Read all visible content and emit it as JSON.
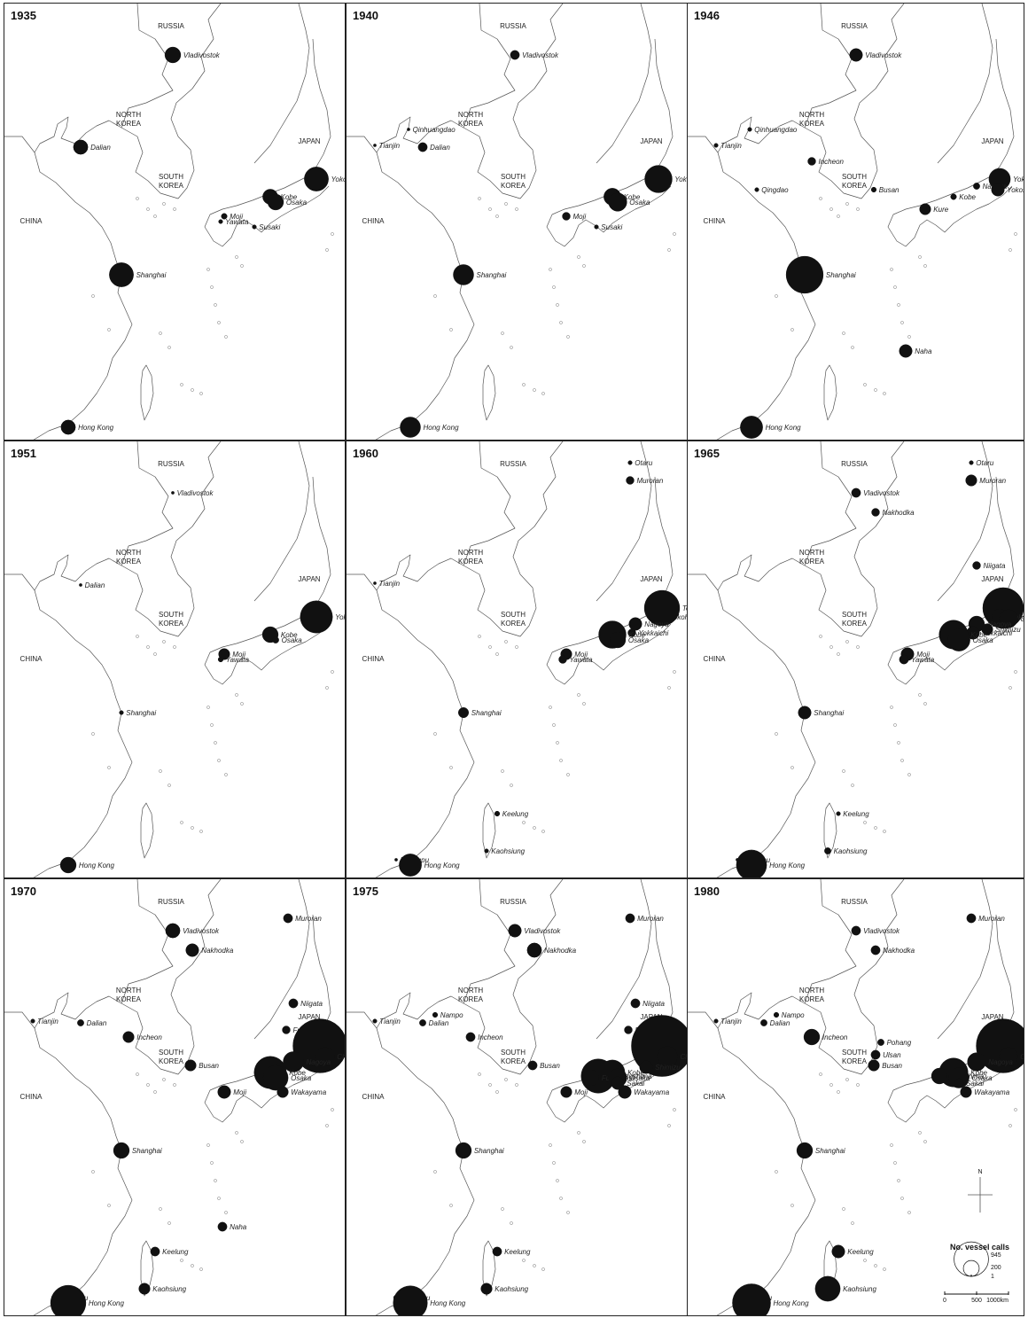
{
  "countries": {
    "russia": "RUSSIA",
    "north_korea_1": "NORTH",
    "north_korea_2": "KOREA",
    "south_korea_1": "SOUTH",
    "south_korea_2": "KOREA",
    "china": "CHINA",
    "japan": "JAPAN"
  },
  "legend": {
    "title": "No. vessel calls",
    "sizes": [
      945,
      200,
      1
    ],
    "scale_labels": [
      "0",
      "500",
      "1000km"
    ],
    "north": "N"
  },
  "ports_catalog": {
    "Vladivostok": [
      190,
      58
    ],
    "Nakhodka": [
      212,
      80
    ],
    "Dalian": [
      86,
      162
    ],
    "Tianjin": [
      32,
      160
    ],
    "Qinhuangdao": [
      70,
      142
    ],
    "Nampo": [
      100,
      153
    ],
    "Incheon": [
      140,
      178
    ],
    "Busan": [
      210,
      210
    ],
    "Ulsan": [
      212,
      198
    ],
    "Pohang": [
      218,
      184
    ],
    "Qingdao": [
      78,
      210
    ],
    "Shanghai": [
      132,
      306
    ],
    "Hong Kong": [
      72,
      478
    ],
    "Huangpu": [
      56,
      472
    ],
    "Keelung": [
      170,
      420
    ],
    "Kaohsiung": [
      158,
      462
    ],
    "Naha": [
      246,
      392
    ],
    "Moji": [
      248,
      240
    ],
    "Yawata": [
      244,
      246
    ],
    "Susaki": [
      282,
      252
    ],
    "Kure": [
      268,
      232
    ],
    "Fukuyama": [
      276,
      224
    ],
    "Mizushima": [
      284,
      222
    ],
    "Kobe": [
      300,
      218
    ],
    "Osaka": [
      306,
      224
    ],
    "Sakai": [
      306,
      230
    ],
    "Wakayama": [
      314,
      240
    ],
    "Yokkaichi": [
      322,
      216
    ],
    "Nagoya": [
      326,
      206
    ],
    "Shimizu": [
      338,
      212
    ],
    "Yokohama": [
      352,
      198
    ],
    "Tokyo": [
      356,
      188
    ],
    "Chiba": [
      362,
      200
    ],
    "Yokosuka": [
      350,
      210
    ],
    "Fushiki": [
      318,
      170
    ],
    "Niigata": [
      326,
      140
    ],
    "Otaru": [
      320,
      24
    ],
    "Muroran": [
      320,
      44
    ]
  },
  "panels": [
    {
      "year": "1935",
      "ports": [
        {
          "name": "Vladivostok",
          "calls": 60
        },
        {
          "name": "Dalian",
          "calls": 50
        },
        {
          "name": "Yokohama",
          "calls": 140
        },
        {
          "name": "Kobe",
          "calls": 55
        },
        {
          "name": "Osaka",
          "calls": 60
        },
        {
          "name": "Moji",
          "calls": 8
        },
        {
          "name": "Yawata",
          "calls": 4
        },
        {
          "name": "Susaki",
          "calls": 4
        },
        {
          "name": "Shanghai",
          "calls": 140
        },
        {
          "name": "Hong Kong",
          "calls": 50
        }
      ]
    },
    {
      "year": "1940",
      "ports": [
        {
          "name": "Vladivostok",
          "calls": 20
        },
        {
          "name": "Qinhuangdao",
          "calls": 2
        },
        {
          "name": "Tianjin",
          "calls": 2
        },
        {
          "name": "Dalian",
          "calls": 20
        },
        {
          "name": "Yokohama",
          "calls": 180
        },
        {
          "name": "Kobe",
          "calls": 70
        },
        {
          "name": "Osaka",
          "calls": 80
        },
        {
          "name": "Moji",
          "calls": 15
        },
        {
          "name": "Susaki",
          "calls": 4
        },
        {
          "name": "Shanghai",
          "calls": 100
        },
        {
          "name": "Hong Kong",
          "calls": 100
        }
      ]
    },
    {
      "year": "1946",
      "ports": [
        {
          "name": "Vladivostok",
          "calls": 40
        },
        {
          "name": "Qinhuangdao",
          "calls": 4
        },
        {
          "name": "Tianjin",
          "calls": 4
        },
        {
          "name": "Incheon",
          "calls": 15
        },
        {
          "name": "Busan",
          "calls": 6
        },
        {
          "name": "Qingdao",
          "calls": 4
        },
        {
          "name": "Kure",
          "calls": 30
        },
        {
          "name": "Kobe",
          "calls": 8
        },
        {
          "name": "Yokohama",
          "calls": 110
        },
        {
          "name": "Nagoya",
          "calls": 10
        },
        {
          "name": "Yokosuka",
          "calls": 40
        },
        {
          "name": "Shanghai",
          "calls": 330
        },
        {
          "name": "Naha",
          "calls": 40
        },
        {
          "name": "Hong Kong",
          "calls": 120
        }
      ]
    },
    {
      "year": "1951",
      "ports": [
        {
          "name": "Vladivostok",
          "calls": 2
        },
        {
          "name": "Dalian",
          "calls": 2
        },
        {
          "name": "Yokohama",
          "calls": 250
        },
        {
          "name": "Kobe",
          "calls": 60
        },
        {
          "name": "Osaka",
          "calls": 10
        },
        {
          "name": "Moji",
          "calls": 30
        },
        {
          "name": "Yawata",
          "calls": 6
        },
        {
          "name": "Shanghai",
          "calls": 4
        },
        {
          "name": "Hong Kong",
          "calls": 60
        }
      ]
    },
    {
      "year": "1960",
      "ports": [
        {
          "name": "Otaru",
          "calls": 4
        },
        {
          "name": "Muroran",
          "calls": 15
        },
        {
          "name": "Tianjin",
          "calls": 2
        },
        {
          "name": "Yokohama",
          "calls": 60
        },
        {
          "name": "Tokyo",
          "calls": 300
        },
        {
          "name": "Nagoya",
          "calls": 40
        },
        {
          "name": "Yokkaichi",
          "calls": 15
        },
        {
          "name": "Kobe",
          "calls": 180
        },
        {
          "name": "Osaka",
          "calls": 60
        },
        {
          "name": "Moji",
          "calls": 30
        },
        {
          "name": "Yawata",
          "calls": 15
        },
        {
          "name": "Shanghai",
          "calls": 25
        },
        {
          "name": "Keelung",
          "calls": 6
        },
        {
          "name": "Kaohsiung",
          "calls": 4
        },
        {
          "name": "Huangpu",
          "calls": 2
        },
        {
          "name": "Hong Kong",
          "calls": 120
        }
      ]
    },
    {
      "year": "1965",
      "ports": [
        {
          "name": "Otaru",
          "calls": 4
        },
        {
          "name": "Muroran",
          "calls": 30
        },
        {
          "name": "Vladivostok",
          "calls": 20
        },
        {
          "name": "Nakhodka",
          "calls": 15
        },
        {
          "name": "Niigata",
          "calls": 15
        },
        {
          "name": "Tokyo",
          "calls": 400
        },
        {
          "name": "Yokohama",
          "calls": 60
        },
        {
          "name": "Chiba",
          "calls": 80
        },
        {
          "name": "Nagoya",
          "calls": 60
        },
        {
          "name": "Yokkaichi",
          "calls": 40
        },
        {
          "name": "Shimizu",
          "calls": 30
        },
        {
          "name": "Kobe",
          "calls": 200
        },
        {
          "name": "Osaka",
          "calls": 120
        },
        {
          "name": "Moji",
          "calls": 40
        },
        {
          "name": "Yawata",
          "calls": 20
        },
        {
          "name": "Shanghai",
          "calls": 40
        },
        {
          "name": "Keelung",
          "calls": 4
        },
        {
          "name": "Kaohsiung",
          "calls": 10
        },
        {
          "name": "Huangpu",
          "calls": 2
        },
        {
          "name": "Hong Kong",
          "calls": 220
        }
      ]
    },
    {
      "year": "1970",
      "ports": [
        {
          "name": "Vladivostok",
          "calls": 50
        },
        {
          "name": "Nakhodka",
          "calls": 40
        },
        {
          "name": "Muroran",
          "calls": 20
        },
        {
          "name": "Tianjin",
          "calls": 4
        },
        {
          "name": "Dalian",
          "calls": 10
        },
        {
          "name": "Incheon",
          "calls": 30
        },
        {
          "name": "Busan",
          "calls": 30
        },
        {
          "name": "Niigata",
          "calls": 20
        },
        {
          "name": "Fushiki",
          "calls": 15
        },
        {
          "name": "Yokohama",
          "calls": 120
        },
        {
          "name": "Tokyo",
          "calls": 700
        },
        {
          "name": "Chiba",
          "calls": 80
        },
        {
          "name": "Nagoya",
          "calls": 100
        },
        {
          "name": "Kobe",
          "calls": 250
        },
        {
          "name": "Osaka",
          "calls": 150
        },
        {
          "name": "Wakayama",
          "calls": 30
        },
        {
          "name": "Moji",
          "calls": 40
        },
        {
          "name": "Shanghai",
          "calls": 60
        },
        {
          "name": "Naha",
          "calls": 20
        },
        {
          "name": "Keelung",
          "calls": 20
        },
        {
          "name": "Kaohsiung",
          "calls": 30
        },
        {
          "name": "Huangpu",
          "calls": 6
        },
        {
          "name": "Hong Kong",
          "calls": 300
        }
      ]
    },
    {
      "year": "1975",
      "ports": [
        {
          "name": "Vladivostok",
          "calls": 40
        },
        {
          "name": "Nakhodka",
          "calls": 50
        },
        {
          "name": "Muroran",
          "calls": 20
        },
        {
          "name": "Tianjin",
          "calls": 4
        },
        {
          "name": "Nampo",
          "calls": 6
        },
        {
          "name": "Dalian",
          "calls": 10
        },
        {
          "name": "Incheon",
          "calls": 20
        },
        {
          "name": "Busan",
          "calls": 20
        },
        {
          "name": "Niigata",
          "calls": 20
        },
        {
          "name": "Fushiki",
          "calls": 15
        },
        {
          "name": "Yokohama",
          "calls": 120
        },
        {
          "name": "Tokyo",
          "calls": 900
        },
        {
          "name": "Chiba",
          "calls": 100
        },
        {
          "name": "Shimizu",
          "calls": 40
        },
        {
          "name": "Kobe",
          "calls": 150
        },
        {
          "name": "Mizushima",
          "calls": 280
        },
        {
          "name": "Fukuyama",
          "calls": 60
        },
        {
          "name": "Osaka",
          "calls": 80
        },
        {
          "name": "Sakai",
          "calls": 40
        },
        {
          "name": "Wakayama",
          "calls": 40
        },
        {
          "name": "Moji",
          "calls": 30
        },
        {
          "name": "Shanghai",
          "calls": 60
        },
        {
          "name": "Keelung",
          "calls": 20
        },
        {
          "name": "Kaohsiung",
          "calls": 30
        },
        {
          "name": "Huangpu",
          "calls": 6
        },
        {
          "name": "Hong Kong",
          "calls": 280
        }
      ]
    },
    {
      "year": "1980",
      "ports": [
        {
          "name": "Vladivostok",
          "calls": 20
        },
        {
          "name": "Nakhodka",
          "calls": 20
        },
        {
          "name": "Muroran",
          "calls": 20
        },
        {
          "name": "Tianjin",
          "calls": 4
        },
        {
          "name": "Nampo",
          "calls": 6
        },
        {
          "name": "Dalian",
          "calls": 10
        },
        {
          "name": "Incheon",
          "calls": 60
        },
        {
          "name": "Pohang",
          "calls": 10
        },
        {
          "name": "Ulsan",
          "calls": 20
        },
        {
          "name": "Busan",
          "calls": 30
        },
        {
          "name": "Yokohama",
          "calls": 60
        },
        {
          "name": "Tokyo",
          "calls": 700
        },
        {
          "name": "Chiba",
          "calls": 80
        },
        {
          "name": "Nagoya",
          "calls": 80
        },
        {
          "name": "Kobe",
          "calls": 200
        },
        {
          "name": "Mizushima",
          "calls": 60
        },
        {
          "name": "Osaka",
          "calls": 100
        },
        {
          "name": "Sakai",
          "calls": 20
        },
        {
          "name": "Wakayama",
          "calls": 30
        },
        {
          "name": "Shanghai",
          "calls": 60
        },
        {
          "name": "Keelung",
          "calls": 40
        },
        {
          "name": "Kaohsiung",
          "calls": 150
        },
        {
          "name": "Huangpu",
          "calls": 10
        },
        {
          "name": "Hong Kong",
          "calls": 350
        }
      ]
    }
  ]
}
